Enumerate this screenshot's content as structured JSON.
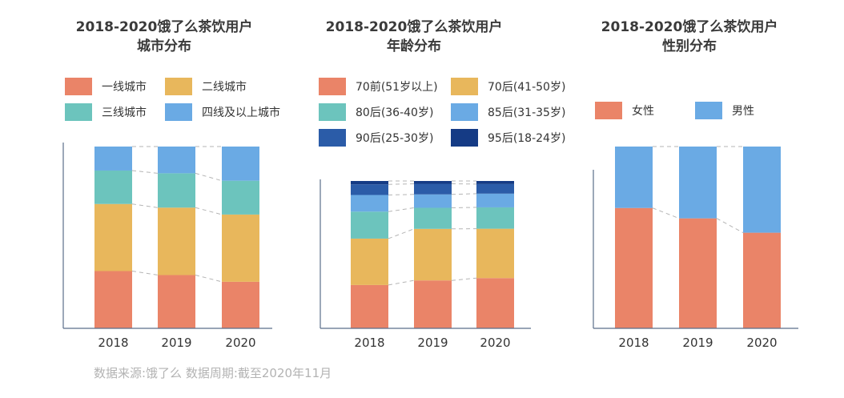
{
  "colors": {
    "red": "#ea8468",
    "yellow": "#e8b75c",
    "teal": "#6cc4bd",
    "blue": "#6aaae4",
    "darkblue": "#2b5ca8",
    "navy": "#153b85",
    "axis": "#5b6e8a",
    "dash": "#b5b5b5"
  },
  "source": "数据来源:饿了么  数据周期:截至2020年11月",
  "chart_data": [
    {
      "type": "bar",
      "stacked": true,
      "normalized": "100%",
      "title": "2018-2020饿了么茶饮用户\n城市分布",
      "categories": [
        "2018",
        "2019",
        "2020"
      ],
      "series": [
        {
          "name": "一线城市",
          "color": "#ea8468",
          "values": [
            31.5,
            29.3,
            25.6
          ]
        },
        {
          "name": "二线城市",
          "color": "#e8b75c",
          "values": [
            36.9,
            37.1,
            37.0
          ]
        },
        {
          "name": "三线城市",
          "color": "#6cc4bd",
          "values": [
            18.4,
            18.9,
            18.6
          ]
        },
        {
          "name": "四线及以上城市",
          "color": "#6aaae4",
          "values": [
            13.2,
            14.7,
            18.8
          ]
        }
      ],
      "legend_position": "top"
    },
    {
      "type": "bar",
      "stacked": true,
      "normalized": "100%",
      "title": "2018-2020饿了么茶饮用户\n年龄分布",
      "categories": [
        "2018",
        "2019",
        "2020"
      ],
      "series": [
        {
          "name": "70前(51岁以上)",
          "color": "#ea8468",
          "values": [
            29.4,
            32.5,
            34.1
          ]
        },
        {
          "name": "70后(41-50岁)",
          "color": "#e8b75c",
          "values": [
            31.5,
            35.0,
            33.5
          ]
        },
        {
          "name": "80后(36-40岁)",
          "color": "#6cc4bd",
          "values": [
            18.3,
            14.3,
            14.5
          ]
        },
        {
          "name": "85后(31-35岁)",
          "color": "#6aaae4",
          "values": [
            11.3,
            9.1,
            9.3
          ]
        },
        {
          "name": "90后(25-30岁)",
          "color": "#2b5ca8",
          "values": [
            7.2,
            7.2,
            6.5
          ]
        },
        {
          "name": "95后(18-24岁)",
          "color": "#153b85",
          "values": [
            2.3,
            1.9,
            2.1
          ]
        }
      ],
      "legend_position": "top"
    },
    {
      "type": "bar",
      "stacked": true,
      "normalized": "100%",
      "title": "2018-2020饿了么茶饮用户\n性别分布",
      "categories": [
        "2018",
        "2019",
        "2020"
      ],
      "series": [
        {
          "name": "女性",
          "color": "#ea8468",
          "values": [
            66.2,
            60.5,
            52.6
          ]
        },
        {
          "name": "男性",
          "color": "#6aaae4",
          "values": [
            33.8,
            39.5,
            47.4
          ]
        }
      ],
      "legend_position": "top"
    }
  ]
}
